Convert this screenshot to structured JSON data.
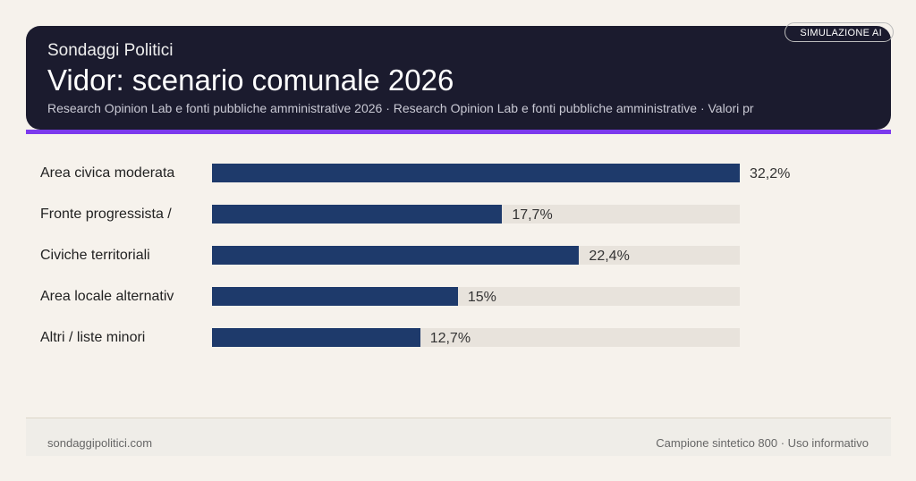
{
  "header": {
    "brand": "Sondaggi Politici",
    "title": "Vidor: scenario comunale 2026",
    "subtitle": "Research Opinion Lab e fonti pubbliche amministrative 2026 · Research Opinion Lab e fonti pubbliche amministrative · Valori pr",
    "badge": "SIMULAZIONE AI"
  },
  "colors": {
    "bar": "#1e3a6b",
    "track": "#e8e3dc",
    "accent": "#7c3aed",
    "header_bg": "#1b1b2e"
  },
  "chart_data": {
    "type": "bar",
    "orientation": "horizontal",
    "categories": [
      "Area civica moderata",
      "Fronte progressista /",
      "Civiche territoriali",
      "Area locale alternativ",
      "Altri / liste minori"
    ],
    "values": [
      32.2,
      17.7,
      22.4,
      15,
      12.7
    ],
    "value_labels": [
      "32,2%",
      "17,7%",
      "22,4%",
      "15%",
      "12,7%"
    ],
    "xlim": [
      0,
      32.2
    ],
    "grid": false
  },
  "footer": {
    "left": "sondaggipolitici.com",
    "right": "Campione sintetico 800 · Uso informativo"
  }
}
